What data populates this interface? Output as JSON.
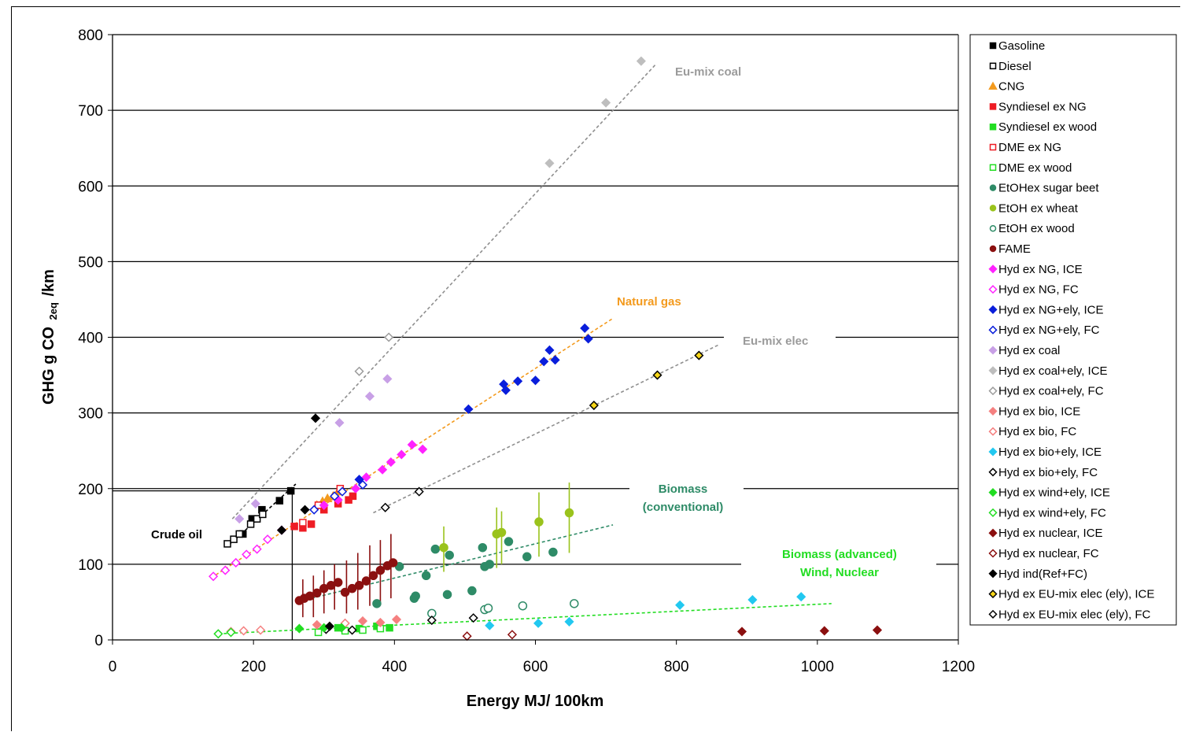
{
  "chart_data": {
    "type": "scatter",
    "xlabel": "Energy MJ/ 100km",
    "ylabel_main": "GHG g CO",
    "ylabel_sub": "2eq",
    "ylabel_tail": "/km",
    "xlim": [
      0,
      1200
    ],
    "ylim": [
      0,
      800
    ],
    "xticks": [
      0,
      200,
      400,
      600,
      800,
      1000,
      1200
    ],
    "yticks": [
      0,
      100,
      200,
      300,
      400,
      500,
      600,
      700,
      800
    ],
    "grid": "horizontal",
    "legend_position": "right",
    "annotations": [
      {
        "text": "Eu-mix coal",
        "color": "#9b9b9b"
      },
      {
        "text": "Natural gas",
        "color": "#f39a1d"
      },
      {
        "text": "Eu-mix elec",
        "color": "#9b9b9b"
      },
      {
        "text": "Biomass",
        "color": "#2e8b67"
      },
      {
        "text": "(conventional)",
        "color": "#2e8b67"
      },
      {
        "text": "Crude oil",
        "color": "#000000"
      },
      {
        "text": "Biomass (advanced)",
        "color": "#22dd22"
      },
      {
        "text": "Wind, Nuclear",
        "color": "#22dd22"
      }
    ],
    "trendlines": [
      {
        "group": "Eu-mix coal",
        "color": "#8f8f8f",
        "x": [
          170,
          770
        ],
        "y": [
          160,
          760
        ]
      },
      {
        "group": "Natural gas",
        "color": "#f39a1d",
        "x": [
          140,
          710
        ],
        "y": [
          82,
          425
        ]
      },
      {
        "group": "Eu-mix elec",
        "color": "#8f8f8f",
        "x": [
          370,
          860
        ],
        "y": [
          168,
          390
        ]
      },
      {
        "group": "Biomass (conventional)",
        "color": "#2e8b67",
        "x": [
          260,
          710
        ],
        "y": [
          50,
          152
        ]
      },
      {
        "group": "Biomass (advanced) Wind, Nuclear",
        "color": "#22dd22",
        "x": [
          150,
          1020
        ],
        "y": [
          8,
          48
        ]
      },
      {
        "group": "Crude oil",
        "color": "#000000",
        "x": [
          165,
          260
        ],
        "y": [
          125,
          206
        ]
      }
    ],
    "reference_lines": {
      "x": 255,
      "y": 197
    },
    "series": [
      {
        "name": "Gasoline",
        "marker": "square",
        "filled": true,
        "color": "#000000",
        "x": [
          185,
          198,
          212,
          237,
          253
        ],
        "y": [
          140,
          160,
          172,
          184,
          197
        ]
      },
      {
        "name": "Diesel",
        "marker": "square",
        "filled": false,
        "color": "#000000",
        "x": [
          163,
          172,
          180,
          196,
          205,
          213
        ],
        "y": [
          127,
          133,
          140,
          153,
          160,
          166
        ]
      },
      {
        "name": "CNG",
        "marker": "triangle",
        "filled": true,
        "color": "#f39a1d",
        "x": [
          290,
          298,
          305,
          313,
          320
        ],
        "y": [
          178,
          183,
          187,
          190,
          196
        ]
      },
      {
        "name": "Syndiesel ex NG",
        "marker": "square",
        "filled": true,
        "color": "#ee1c24",
        "x": [
          258,
          270,
          282,
          300,
          320,
          335,
          341
        ],
        "y": [
          150,
          148,
          153,
          172,
          180,
          185,
          190
        ]
      },
      {
        "name": "Syndiesel ex wood",
        "marker": "square",
        "filled": true,
        "color": "#22dd22",
        "x": [
          320,
          350,
          375,
          393
        ],
        "y": [
          16,
          15,
          18,
          16
        ]
      },
      {
        "name": "DME ex NG",
        "marker": "square",
        "filled": false,
        "color": "#ee1c24",
        "x": [
          270,
          292,
          323
        ],
        "y": [
          155,
          178,
          200
        ]
      },
      {
        "name": "DME ex wood",
        "marker": "square",
        "filled": false,
        "color": "#22dd22",
        "x": [
          292,
          330,
          355,
          380
        ],
        "y": [
          10,
          12,
          13,
          15
        ]
      },
      {
        "name": "EtOHex sugar beet",
        "marker": "circle",
        "filled": true,
        "color": "#2e8b67",
        "x": [
          375,
          407,
          428,
          430,
          445,
          458,
          475,
          478,
          510,
          525,
          528,
          535,
          562,
          588,
          625
        ],
        "y": [
          48,
          97,
          55,
          58,
          85,
          120,
          60,
          112,
          65,
          122,
          97,
          100,
          130,
          110,
          116
        ]
      },
      {
        "name": "EtOH ex wheat",
        "marker": "circle",
        "filled": true,
        "color": "#9ac31c",
        "x": [
          470,
          545,
          552,
          605,
          648
        ],
        "y": [
          122,
          140,
          142,
          156,
          168
        ]
      },
      {
        "name": "EtOH ex wood",
        "marker": "circle",
        "filled": false,
        "color": "#2e8b67",
        "x": [
          453,
          528,
          533,
          582,
          655
        ],
        "y": [
          35,
          40,
          42,
          45,
          48
        ]
      },
      {
        "name": "FAME",
        "marker": "circle",
        "filled": true,
        "color": "#8b1010",
        "x": [
          265,
          272,
          280,
          290,
          300,
          310,
          320,
          330,
          340,
          350,
          360,
          370,
          380,
          390,
          398
        ],
        "y": [
          52,
          55,
          58,
          62,
          68,
          72,
          76,
          63,
          68,
          72,
          78,
          85,
          92,
          98,
          102
        ]
      },
      {
        "name": "Hyd ex NG, ICE",
        "marker": "diamond",
        "filled": true,
        "color": "#ff22ff",
        "x": [
          300,
          320,
          345,
          360,
          383,
          395,
          410,
          425,
          440
        ],
        "y": [
          178,
          185,
          200,
          215,
          225,
          235,
          245,
          258,
          252
        ]
      },
      {
        "name": "Hyd ex NG, FC",
        "marker": "diamond",
        "filled": false,
        "color": "#ff22ff",
        "x": [
          143,
          160,
          175,
          190,
          205,
          220,
          240
        ],
        "y": [
          84,
          92,
          102,
          113,
          120,
          133,
          145
        ]
      },
      {
        "name": "Hyd ex NG+ely, ICE",
        "marker": "diamond",
        "filled": true,
        "color": "#0a1edb",
        "x": [
          350,
          505,
          555,
          558,
          575,
          600,
          612,
          620,
          628,
          670,
          675
        ],
        "y": [
          212,
          305,
          338,
          330,
          342,
          343,
          368,
          383,
          370,
          412,
          398
        ]
      },
      {
        "name": "Hyd ex NG+ely, FC",
        "marker": "diamond",
        "filled": false,
        "color": "#0a1edb",
        "x": [
          286,
          315,
          326,
          355
        ],
        "y": [
          172,
          190,
          196,
          205
        ]
      },
      {
        "name": "Hyd ex coal",
        "marker": "diamond",
        "filled": true,
        "color": "#c8a0e6",
        "x": [
          180,
          203,
          322,
          365,
          390
        ],
        "y": [
          160,
          180,
          287,
          322,
          345
        ]
      },
      {
        "name": "Hyd ex coal+ely, ICE",
        "marker": "diamond",
        "filled": true,
        "color": "#bebebe",
        "x": [
          620,
          700,
          750
        ],
        "y": [
          630,
          710,
          765
        ]
      },
      {
        "name": "Hyd ex coal+ely, FC",
        "marker": "diamond",
        "filled": false,
        "color": "#9b9b9b",
        "x": [
          350,
          392
        ],
        "y": [
          355,
          400
        ]
      },
      {
        "name": "Hyd ex bio, ICE",
        "marker": "diamond",
        "filled": true,
        "color": "#f58080",
        "x": [
          290,
          330,
          355,
          380,
          403
        ],
        "y": [
          20,
          22,
          25,
          23,
          27
        ]
      },
      {
        "name": "Hyd ex bio, FC",
        "marker": "diamond",
        "filled": false,
        "color": "#f58080",
        "x": [
          168,
          186,
          210,
          330
        ],
        "y": [
          11,
          12,
          13,
          22
        ]
      },
      {
        "name": "Hyd ex bio+ely, ICE",
        "marker": "diamond",
        "filled": true,
        "color": "#22c8f0",
        "x": [
          535,
          604,
          648,
          805,
          908,
          977
        ],
        "y": [
          19,
          22,
          24,
          46,
          53,
          57
        ]
      },
      {
        "name": "Hyd ex bio+ely, FC",
        "marker": "diamond",
        "filled": false,
        "color": "#000000",
        "x": [
          303,
          340,
          453,
          512
        ],
        "y": [
          14,
          13,
          26,
          29
        ]
      },
      {
        "name": "Hyd ex wind+ely, ICE",
        "marker": "diamond",
        "filled": true,
        "color": "#22dd22",
        "x": [
          265,
          300,
          325
        ],
        "y": [
          15,
          16,
          16
        ]
      },
      {
        "name": "Hyd ex wind+ely, FC",
        "marker": "diamond",
        "filled": false,
        "color": "#22dd22",
        "x": [
          150,
          168
        ],
        "y": [
          8,
          10
        ]
      },
      {
        "name": "Hyd ex nuclear, ICE",
        "marker": "diamond",
        "filled": true,
        "color": "#8b1010",
        "x": [
          893,
          1010,
          1085
        ],
        "y": [
          11,
          12,
          13
        ]
      },
      {
        "name": "Hyd ex nuclear, FC",
        "marker": "diamond",
        "filled": false,
        "color": "#8b1010",
        "x": [
          503,
          567
        ],
        "y": [
          5,
          7
        ]
      },
      {
        "name": "Hyd ind(Ref+FC)",
        "marker": "diamond",
        "filled": true,
        "color": "#000000",
        "x": [
          240,
          273,
          288,
          308
        ],
        "y": [
          145,
          172,
          293,
          18
        ]
      },
      {
        "name": "Hyd ex EU-mix elec (ely), ICE",
        "marker": "diamond",
        "filled": false,
        "color": "#000000",
        "fill": "#f7d618",
        "x": [
          683,
          773,
          832
        ],
        "y": [
          310,
          350,
          376
        ]
      },
      {
        "name": "Hyd ex EU-mix elec (ely), FC",
        "marker": "diamond",
        "filled": false,
        "color": "#000000",
        "x": [
          387,
          435
        ],
        "y": [
          175,
          196
        ]
      }
    ],
    "error_bars": [
      {
        "series": "FAME",
        "x": 270,
        "lo": 30,
        "hi": 80
      },
      {
        "series": "FAME",
        "x": 285,
        "lo": 30,
        "hi": 85
      },
      {
        "series": "FAME",
        "x": 300,
        "lo": 35,
        "hi": 92
      },
      {
        "series": "FAME",
        "x": 315,
        "lo": 40,
        "hi": 100
      },
      {
        "series": "FAME",
        "x": 332,
        "lo": 35,
        "hi": 105
      },
      {
        "series": "FAME",
        "x": 348,
        "lo": 40,
        "hi": 115
      },
      {
        "series": "FAME",
        "x": 365,
        "lo": 45,
        "hi": 125
      },
      {
        "series": "FAME",
        "x": 380,
        "lo": 50,
        "hi": 132
      },
      {
        "series": "FAME",
        "x": 395,
        "lo": 55,
        "hi": 140
      },
      {
        "series": "EtOH ex wheat",
        "x": 470,
        "lo": 90,
        "hi": 150
      },
      {
        "series": "EtOH ex wheat",
        "x": 545,
        "lo": 95,
        "hi": 175
      },
      {
        "series": "EtOH ex wheat",
        "x": 552,
        "lo": 100,
        "hi": 170
      },
      {
        "series": "EtOH ex wheat",
        "x": 605,
        "lo": 110,
        "hi": 195
      },
      {
        "series": "EtOH ex wheat",
        "x": 648,
        "lo": 115,
        "hi": 208
      }
    ]
  }
}
